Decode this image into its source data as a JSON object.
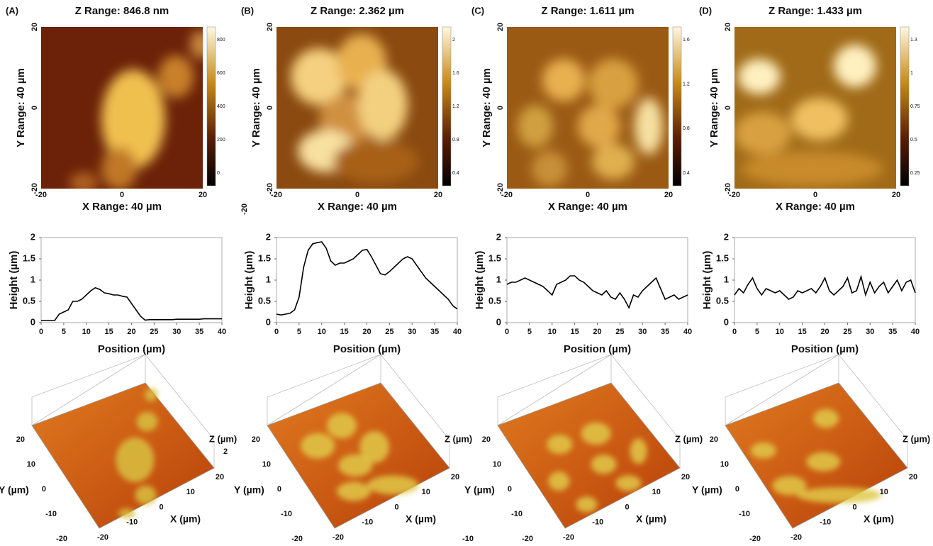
{
  "panels": [
    {
      "label": "(A)",
      "z_range": "Z Range: 846.8 nm",
      "image": {
        "xlim": [
          -20,
          20
        ],
        "ylim": [
          -20,
          20
        ],
        "xticks": [
          -20,
          0,
          20
        ],
        "yticks": [
          -20,
          0,
          20
        ],
        "x_label": "X Range: 40 µm",
        "y_label": "Y Range: 40 µm",
        "colorbar_ticks": [
          800,
          600,
          400,
          200,
          0
        ]
      },
      "surface": {
        "z_label": "Z (µm)",
        "z_ticks": [
          2
        ],
        "y_label": "Y (µm)",
        "x_label": "X (µm)",
        "xlim": [
          -20,
          20
        ],
        "ylim": [
          -20,
          20
        ],
        "yticks": [
          20,
          10,
          0,
          -10,
          -20
        ],
        "xticks": [
          -20,
          -10,
          0,
          10,
          20
        ]
      }
    },
    {
      "label": "(B)",
      "z_range": "Z Range: 2.362 µm",
      "image": {
        "xlim": [
          -20,
          20
        ],
        "ylim": [
          -20,
          20
        ],
        "xticks": [
          -20,
          0,
          20
        ],
        "yticks": [
          -20,
          0,
          20
        ],
        "x_label": "X Range: 40 µm",
        "y_label": "Y Range: 40 µm",
        "colorbar_ticks": [
          2,
          1.6,
          1.2,
          0.8,
          0.4
        ]
      },
      "surface": {
        "z_label": "Z (µm)",
        "z_ticks": [],
        "y_label": "Y (µm)",
        "x_label": "X (µm)",
        "xlim": [
          -20,
          20
        ],
        "ylim": [
          -20,
          20
        ],
        "yticks": [
          20,
          10,
          0,
          -10,
          -20
        ],
        "xticks": [
          -20,
          -10,
          0,
          10,
          20
        ]
      }
    },
    {
      "label": "(C)",
      "z_range": "Z Range: 1.611 µm",
      "image": {
        "xlim": [
          -20,
          20
        ],
        "ylim": [
          -20,
          20
        ],
        "xticks": [
          -20,
          0,
          20
        ],
        "yticks": [
          -20,
          0,
          20
        ],
        "x_label": "X Range: 40 µm",
        "y_label": "Y Range: 40 µm",
        "colorbar_ticks": [
          1.6,
          1.2,
          0.8,
          0.4
        ]
      },
      "surface": {
        "z_label": "Z (µm)",
        "z_ticks": [],
        "y_label": "Y (µm)",
        "x_label": "X (µm)",
        "xlim": [
          -20,
          20
        ],
        "ylim": [
          -20,
          20
        ],
        "yticks": [
          20,
          10,
          0,
          -10,
          -20
        ],
        "xticks": [
          -20,
          -10,
          0,
          10,
          20
        ]
      }
    },
    {
      "label": "(D)",
      "z_range": "Z Range: 1.433 µm",
      "image": {
        "xlim": [
          -20,
          20
        ],
        "ylim": [
          -20,
          20
        ],
        "xticks": [
          -20,
          0,
          20
        ],
        "yticks": [
          -20,
          0,
          20
        ],
        "x_label": "X Range: 40 µm",
        "y_label": "Y Range: 40 µm",
        "colorbar_ticks": [
          1.3,
          1,
          0.75,
          0.5,
          0.25
        ]
      },
      "surface": {
        "z_label": "Z (µm)",
        "z_ticks": [],
        "y_label": "Y (µm)",
        "x_label": "X (µm)",
        "xlim": [
          -20,
          20
        ],
        "ylim": [
          -20,
          20
        ],
        "yticks": [
          20,
          10,
          0,
          -10,
          -20
        ],
        "xticks": [
          -20,
          -10,
          0,
          10,
          20
        ]
      }
    }
  ],
  "stray_labels": [
    -20,
    -10
  ],
  "chart_data": [
    {
      "type": "line",
      "x_label": "Position (µm)",
      "y_label": "Height (µm)",
      "color": "#000000",
      "x": [
        0,
        1,
        2,
        3,
        4,
        5,
        6,
        7,
        8,
        9,
        10,
        11,
        12,
        13,
        14,
        15,
        16,
        17,
        18,
        19,
        20,
        21,
        22,
        23,
        24,
        25,
        26,
        27,
        28,
        29,
        30,
        31,
        32,
        33,
        34,
        35,
        36,
        37,
        38,
        39,
        40
      ],
      "values": [
        0.05,
        0.05,
        0.05,
        0.05,
        0.2,
        0.25,
        0.3,
        0.5,
        0.5,
        0.55,
        0.65,
        0.75,
        0.82,
        0.78,
        0.7,
        0.68,
        0.65,
        0.65,
        0.62,
        0.6,
        0.45,
        0.3,
        0.15,
        0.06,
        0.07,
        0.07,
        0.07,
        0.07,
        0.07,
        0.07,
        0.08,
        0.08,
        0.08,
        0.08,
        0.08,
        0.08,
        0.09,
        0.09,
        0.09,
        0.09,
        0.09
      ],
      "xlim": [
        0,
        40
      ],
      "ylim": [
        0,
        2
      ],
      "xticks": [
        0,
        5,
        10,
        15,
        20,
        25,
        30,
        35,
        40
      ],
      "yticks": [
        0,
        0.5,
        1,
        1.5,
        2
      ]
    },
    {
      "type": "line",
      "x_label": "Position (µm)",
      "y_label": "Height (µm)",
      "color": "#000000",
      "x": [
        0,
        1,
        2,
        3,
        4,
        5,
        6,
        7,
        8,
        9,
        10,
        11,
        12,
        13,
        14,
        15,
        16,
        17,
        18,
        19,
        20,
        21,
        22,
        23,
        24,
        25,
        26,
        27,
        28,
        29,
        30,
        31,
        32,
        33,
        34,
        35,
        36,
        37,
        38,
        39,
        40
      ],
      "values": [
        0.2,
        0.18,
        0.2,
        0.22,
        0.3,
        0.6,
        1.3,
        1.7,
        1.85,
        1.88,
        1.9,
        1.75,
        1.45,
        1.35,
        1.4,
        1.4,
        1.45,
        1.5,
        1.6,
        1.7,
        1.72,
        1.55,
        1.35,
        1.15,
        1.12,
        1.2,
        1.3,
        1.4,
        1.5,
        1.55,
        1.5,
        1.35,
        1.2,
        1.05,
        0.95,
        0.85,
        0.75,
        0.65,
        0.55,
        0.4,
        0.32
      ],
      "xlim": [
        0,
        40
      ],
      "ylim": [
        0,
        2
      ],
      "xticks": [
        0,
        5,
        10,
        15,
        20,
        25,
        30,
        35,
        40
      ],
      "yticks": [
        0,
        0.5,
        1,
        1.5,
        2
      ]
    },
    {
      "type": "line",
      "x_label": "Position (µm)",
      "y_label": "Height (µm)",
      "color": "#000000",
      "x": [
        0,
        1,
        2,
        3,
        4,
        5,
        6,
        7,
        8,
        9,
        10,
        11,
        12,
        13,
        14,
        15,
        16,
        17,
        18,
        19,
        20,
        21,
        22,
        23,
        24,
        25,
        26,
        27,
        28,
        29,
        30,
        31,
        32,
        33,
        34,
        35,
        36,
        37,
        38,
        39,
        40
      ],
      "values": [
        0.9,
        0.95,
        0.95,
        1.0,
        1.05,
        1.0,
        0.95,
        0.9,
        0.85,
        0.75,
        0.65,
        0.9,
        0.95,
        1.0,
        1.1,
        1.1,
        1.0,
        0.95,
        0.85,
        0.75,
        0.7,
        0.65,
        0.75,
        0.6,
        0.55,
        0.7,
        0.55,
        0.35,
        0.65,
        0.6,
        0.75,
        0.85,
        0.95,
        1.05,
        0.8,
        0.55,
        0.6,
        0.65,
        0.55,
        0.6,
        0.65
      ],
      "xlim": [
        0,
        40
      ],
      "ylim": [
        0,
        2
      ],
      "xticks": [
        0,
        5,
        10,
        15,
        20,
        25,
        30,
        35,
        40
      ],
      "yticks": [
        0,
        0.5,
        1,
        1.5,
        2
      ]
    },
    {
      "type": "line",
      "x_label": "Position (µm)",
      "y_label": "Height (µm)",
      "color": "#000000",
      "x": [
        0,
        1,
        2,
        3,
        4,
        5,
        6,
        7,
        8,
        9,
        10,
        11,
        12,
        13,
        14,
        15,
        16,
        17,
        18,
        19,
        20,
        21,
        22,
        23,
        24,
        25,
        26,
        27,
        28,
        29,
        30,
        31,
        32,
        33,
        34,
        35,
        36,
        37,
        38,
        39,
        40
      ],
      "values": [
        0.65,
        0.8,
        0.7,
        0.9,
        1.05,
        0.8,
        0.65,
        0.8,
        0.75,
        0.7,
        0.75,
        0.65,
        0.55,
        0.6,
        0.75,
        0.7,
        0.75,
        0.8,
        0.7,
        0.85,
        1.05,
        0.75,
        0.65,
        0.75,
        0.85,
        1.05,
        0.7,
        0.75,
        1.08,
        0.65,
        0.95,
        0.7,
        0.85,
        0.95,
        0.7,
        0.85,
        1.0,
        0.75,
        0.95,
        1.0,
        0.7
      ],
      "xlim": [
        0,
        40
      ],
      "ylim": [
        0,
        2
      ],
      "xticks": [
        0,
        5,
        10,
        15,
        20,
        25,
        30,
        35,
        40
      ],
      "yticks": [
        0,
        0.5,
        1,
        1.5,
        2
      ]
    }
  ]
}
